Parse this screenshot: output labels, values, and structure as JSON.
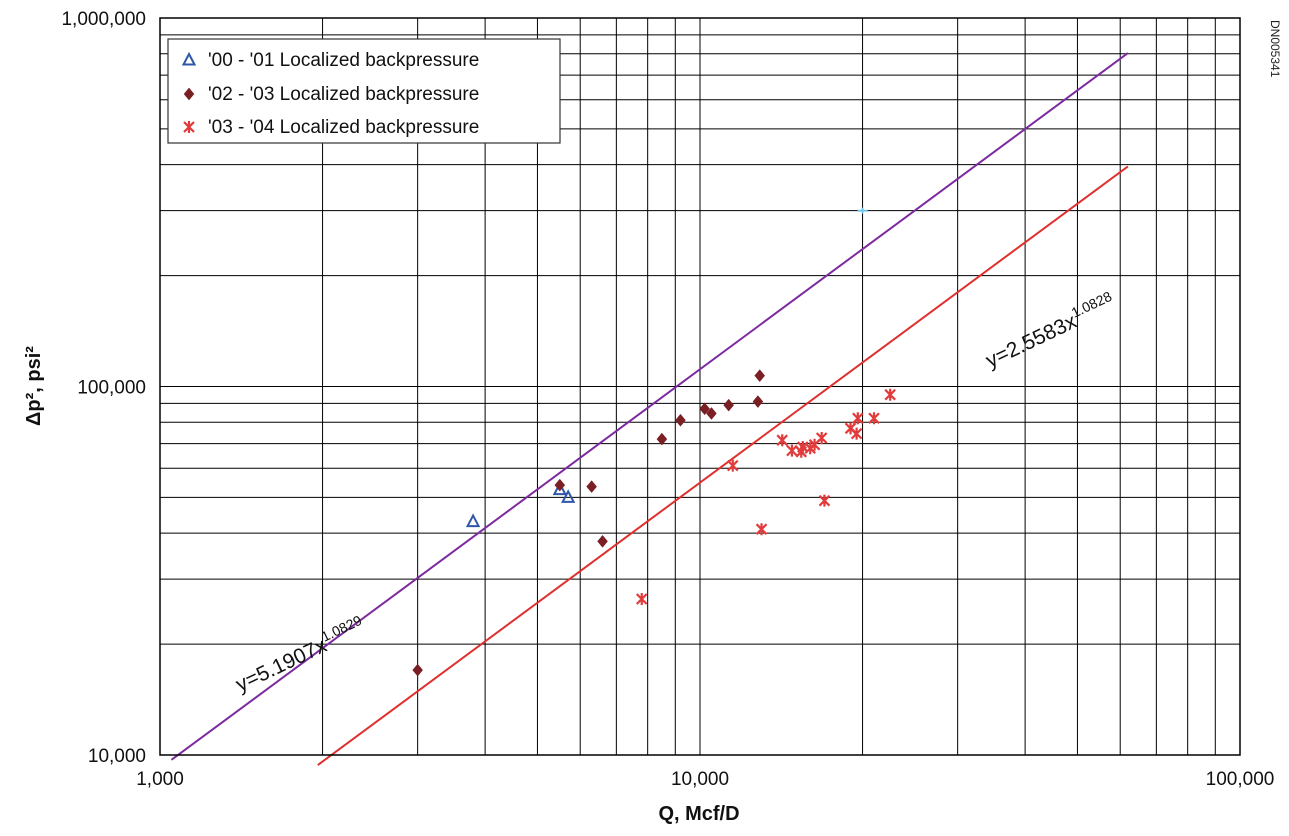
{
  "chart_data": {
    "type": "scatter",
    "title": "",
    "xlabel": "Q, Mcf/D",
    "ylabel": "Δp², psi²",
    "watermark": "DN005341",
    "xscale": "log",
    "yscale": "log",
    "xlim": [
      1000,
      100000
    ],
    "ylim": [
      10000,
      1000000
    ],
    "xticks": [
      {
        "value": 1000,
        "label": "1,000"
      },
      {
        "value": 10000,
        "label": "10,000"
      },
      {
        "value": 100000,
        "label": "100,000"
      }
    ],
    "yticks": [
      {
        "value": 10000,
        "label": "10,000"
      },
      {
        "value": 100000,
        "label": "100,000"
      },
      {
        "value": 1000000,
        "label": "1,000,000"
      }
    ],
    "grid": true,
    "legend_position": "top-left",
    "series": [
      {
        "name": "'00 - '01 Localized backpressure",
        "marker": "triangle",
        "color": "#2f57a8",
        "points": [
          [
            3800,
            43000
          ],
          [
            5500,
            52500
          ],
          [
            5700,
            50000
          ]
        ]
      },
      {
        "name": "'02 - '03 Localized backpressure",
        "marker": "diamond",
        "color": "#7a1f24",
        "points": [
          [
            3000,
            17000
          ],
          [
            5500,
            54000
          ],
          [
            6300,
            53500
          ],
          [
            6600,
            38000
          ],
          [
            8500,
            72000
          ],
          [
            9200,
            81000
          ],
          [
            10200,
            87000
          ],
          [
            10500,
            84500
          ],
          [
            11300,
            89000
          ],
          [
            12800,
            91000
          ],
          [
            12900,
            107000
          ]
        ]
      },
      {
        "name": "'03 - '04 Localized backpressure",
        "marker": "x",
        "color": "#e23b3b",
        "points": [
          [
            7800,
            26500
          ],
          [
            11500,
            61000
          ],
          [
            13000,
            41000
          ],
          [
            14200,
            71500
          ],
          [
            14800,
            67000
          ],
          [
            15400,
            66500
          ],
          [
            15500,
            68500
          ],
          [
            16000,
            68000
          ],
          [
            16300,
            69500
          ],
          [
            16800,
            72500
          ],
          [
            17000,
            49000
          ],
          [
            19000,
            77000
          ],
          [
            19500,
            74500
          ],
          [
            19600,
            82000
          ],
          [
            21000,
            82000
          ],
          [
            22500,
            95000
          ]
        ]
      }
    ],
    "annotations": [
      {
        "base": "y=5.1907x",
        "exponent": "1.0829"
      },
      {
        "base": "y=2.5583x",
        "exponent": "1.0828"
      }
    ],
    "trendlines": [
      {
        "coef": 5.1907,
        "exp": 1.0829,
        "x_from": 1050,
        "x_to": 62000,
        "color": "#7d2aa0"
      },
      {
        "coef": 2.5583,
        "exp": 1.0828,
        "x_from": 1960,
        "x_to": 62000,
        "color": "#e0302e"
      }
    ],
    "stray_marks": [
      {
        "x": 20000,
        "y": 300000,
        "color": "#6fc6ea"
      }
    ]
  }
}
